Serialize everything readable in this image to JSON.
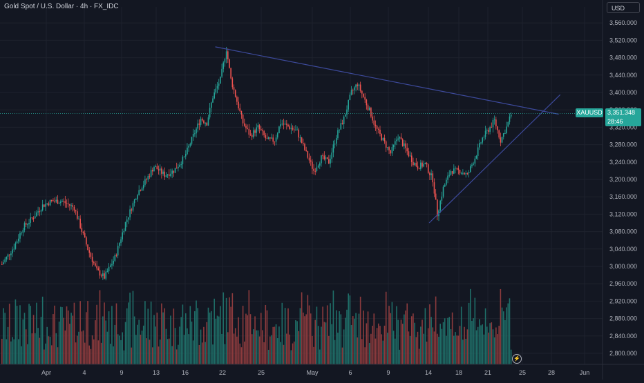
{
  "header": {
    "symbol_title": "Gold Spot / U.S. Dollar · 4h · FX_IDC",
    "currency": "USD"
  },
  "price_label": {
    "symbol": "XAUUSD",
    "price": "3,351.348",
    "countdown": "28:46"
  },
  "colors": {
    "background": "#131722",
    "up": "#26a69a",
    "down": "#ef5350",
    "volume_up": "#1f6e68",
    "volume_down": "#8c3b3d",
    "trendline": "#3d4a9c",
    "grid": "#1e222d",
    "axis_text": "#b2b5be"
  },
  "chart_data": {
    "type": "candlestick",
    "title": "Gold Spot / U.S. Dollar · 4h · FX_IDC",
    "ylim": [
      2780,
      3580
    ],
    "y_ticks": [
      "2,800.000",
      "2,840.000",
      "2,880.000",
      "2,920.000",
      "2,960.000",
      "3,000.000",
      "3,040.000",
      "3,080.000",
      "3,120.000",
      "3,160.000",
      "3,200.000",
      "3,240.000",
      "3,280.000",
      "3,320.000",
      "3,360.000",
      "3,400.000",
      "3,440.000",
      "3,480.000",
      "3,520.000",
      "3,560.000"
    ],
    "x_ticks": [
      "Apr",
      "4",
      "9",
      "13",
      "16",
      "22",
      "25",
      "May",
      "6",
      "9",
      "14",
      "18",
      "21",
      "25",
      "28",
      "Jun"
    ],
    "last_price": 3351.348,
    "price_path_approx": [
      [
        0,
        3005
      ],
      [
        8,
        3045
      ],
      [
        14,
        3090
      ],
      [
        20,
        3110
      ],
      [
        27,
        3140
      ],
      [
        33,
        3150
      ],
      [
        40,
        3150
      ],
      [
        48,
        3135
      ],
      [
        57,
        3040
      ],
      [
        63,
        2990
      ],
      [
        68,
        2975
      ],
      [
        75,
        3020
      ],
      [
        82,
        3100
      ],
      [
        90,
        3170
      ],
      [
        96,
        3200
      ],
      [
        101,
        3230
      ],
      [
        108,
        3210
      ],
      [
        114,
        3220
      ],
      [
        121,
        3250
      ],
      [
        127,
        3300
      ],
      [
        132,
        3340
      ],
      [
        136,
        3330
      ],
      [
        140,
        3390
      ],
      [
        145,
        3430
      ],
      [
        149,
        3500
      ],
      [
        152,
        3430
      ],
      [
        156,
        3380
      ],
      [
        160,
        3330
      ],
      [
        165,
        3300
      ],
      [
        170,
        3320
      ],
      [
        176,
        3290
      ],
      [
        181,
        3290
      ],
      [
        185,
        3330
      ],
      [
        191,
        3320
      ],
      [
        196,
        3310
      ],
      [
        202,
        3260
      ],
      [
        207,
        3220
      ],
      [
        212,
        3250
      ],
      [
        217,
        3240
      ],
      [
        222,
        3300
      ],
      [
        227,
        3340
      ],
      [
        232,
        3400
      ],
      [
        236,
        3420
      ],
      [
        240,
        3390
      ],
      [
        245,
        3350
      ],
      [
        248,
        3320
      ],
      [
        253,
        3290
      ],
      [
        258,
        3260
      ],
      [
        263,
        3300
      ],
      [
        268,
        3270
      ],
      [
        273,
        3240
      ],
      [
        276,
        3230
      ],
      [
        281,
        3235
      ],
      [
        286,
        3200
      ],
      [
        289,
        3120
      ],
      [
        293,
        3180
      ],
      [
        298,
        3220
      ],
      [
        304,
        3220
      ],
      [
        309,
        3210
      ],
      [
        314,
        3250
      ],
      [
        319,
        3295
      ],
      [
        324,
        3320
      ],
      [
        327,
        3335
      ],
      [
        331,
        3290
      ],
      [
        335,
        3320
      ],
      [
        338,
        3350
      ]
    ],
    "trendlines": [
      {
        "from": [
          142,
          3505
        ],
        "to": [
          370,
          3350
        ]
      },
      {
        "from": [
          284,
          3100
        ],
        "to": [
          371,
          3395
        ]
      }
    ],
    "volume": "bars below price, colored by candle direction"
  }
}
